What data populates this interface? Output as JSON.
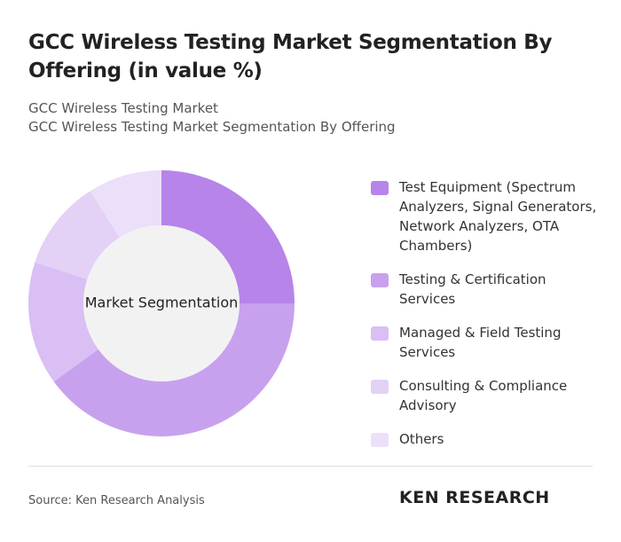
{
  "chart_data": {
    "type": "donut",
    "title": "GCC Wireless Testing Market Segmentation By Offering (in value %)",
    "subtitle": "GCC Wireless Testing Market",
    "subtitle2": "GCC Wireless Testing Market Segmentation By Offering",
    "center_label": "Market Segmentation",
    "categories": [
      "Test Equipment (Spectrum Analyzers, Signal Generators, Network Analyzers, OTA Chambers)",
      "Testing & Certification Services",
      "Managed & Field Testing Services",
      "Consulting & Compliance Advisory",
      "Others"
    ],
    "values": [
      25,
      40,
      15,
      11,
      9
    ],
    "colors": [
      "#b784ea",
      "#c8a1ee",
      "#d9bff4",
      "#e3d1f6",
      "#ecdff9"
    ]
  },
  "source": "Source: Ken Research Analysis",
  "brand": "KEN RESEARCH"
}
